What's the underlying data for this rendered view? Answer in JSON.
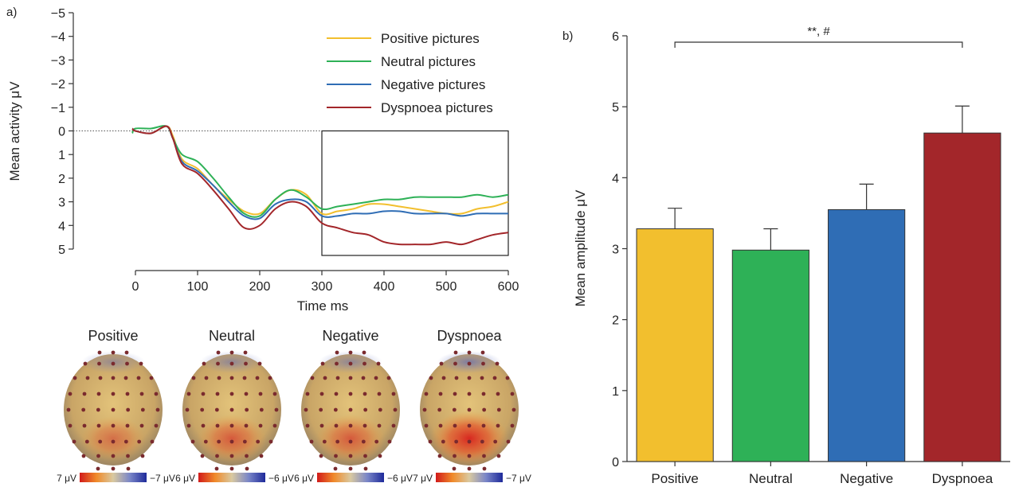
{
  "panel_a": {
    "label": "a)",
    "chart_data": {
      "type": "line",
      "xlabel": "Time ms",
      "ylabel": "Mean activity μV",
      "xlim": [
        0,
        600
      ],
      "ylim": [
        -5,
        5
      ],
      "y_inverted": true,
      "x_ticks": [
        "0",
        "100",
        "200",
        "300",
        "400",
        "500",
        "600"
      ],
      "y_ticks": [
        "−5",
        "−4",
        "−3",
        "−2",
        "−1",
        "0",
        "1",
        "2",
        "3",
        "4",
        "5"
      ],
      "legend_position": "top-right",
      "highlight_window": [
        300,
        600
      ],
      "x": [
        -5,
        0,
        25,
        50,
        60,
        75,
        100,
        125,
        150,
        175,
        200,
        225,
        250,
        275,
        300,
        325,
        350,
        375,
        400,
        425,
        450,
        475,
        500,
        525,
        550,
        575,
        600
      ],
      "series": [
        {
          "name": "Positive pictures",
          "color": "#f2bf2e",
          "values": [
            -0.1,
            0,
            0.1,
            -0.2,
            0.2,
            1.2,
            1.6,
            2.3,
            2.9,
            3.4,
            3.5,
            2.9,
            2.5,
            2.7,
            3.5,
            3.4,
            3.3,
            3.1,
            3.1,
            3.2,
            3.3,
            3.4,
            3.5,
            3.5,
            3.3,
            3.2,
            3.0
          ]
        },
        {
          "name": "Neutral pictures",
          "color": "#2eb157",
          "values": [
            0.1,
            -0.1,
            -0.1,
            -0.2,
            0.3,
            1.0,
            1.3,
            2.0,
            2.8,
            3.5,
            3.6,
            2.9,
            2.5,
            2.8,
            3.3,
            3.2,
            3.1,
            3.0,
            2.9,
            2.9,
            2.8,
            2.8,
            2.8,
            2.8,
            2.7,
            2.8,
            2.7
          ]
        },
        {
          "name": "Negative pictures",
          "color": "#2f6db5",
          "values": [
            -0.1,
            0,
            0.1,
            -0.2,
            0.3,
            1.3,
            1.7,
            2.3,
            3.0,
            3.6,
            3.7,
            3.1,
            2.9,
            3.0,
            3.6,
            3.6,
            3.5,
            3.5,
            3.4,
            3.4,
            3.5,
            3.5,
            3.5,
            3.6,
            3.5,
            3.5,
            3.5
          ]
        },
        {
          "name": "Dyspnoea pictures",
          "color": "#a3262a",
          "values": [
            -0.1,
            0,
            0.1,
            -0.2,
            0.3,
            1.4,
            1.8,
            2.5,
            3.3,
            4.1,
            4.0,
            3.3,
            3.0,
            3.2,
            3.9,
            4.1,
            4.3,
            4.4,
            4.7,
            4.8,
            4.8,
            4.8,
            4.7,
            4.8,
            4.6,
            4.4,
            4.3
          ]
        }
      ]
    }
  },
  "topomaps": [
    {
      "title": "Positive",
      "scale_left": "7 μV",
      "scale_right": "−7 μV",
      "intensity": 0.45
    },
    {
      "title": "Neutral",
      "scale_left": "6 μV",
      "scale_right": "−6 μV",
      "intensity": 0.6
    },
    {
      "title": "Negative",
      "scale_left": "6 μV",
      "scale_right": "−6 μV",
      "intensity": 0.6
    },
    {
      "title": "Dyspnoea",
      "scale_left": "7 μV",
      "scale_right": "−7 μV",
      "intensity": 0.95
    }
  ],
  "panel_b": {
    "label": "b)",
    "chart_data": {
      "type": "bar",
      "categories": [
        "Positive",
        "Neutral",
        "Negative",
        "Dyspnoea"
      ],
      "values": [
        3.28,
        2.98,
        3.55,
        4.63
      ],
      "errors": [
        0.29,
        0.3,
        0.36,
        0.38
      ],
      "colors": [
        "#f2bf2e",
        "#2eb157",
        "#2f6db5",
        "#a3262a"
      ],
      "ylabel": "Mean amplitude μV",
      "ylim": [
        0,
        6
      ],
      "y_ticks": [
        "0",
        "1",
        "2",
        "3",
        "4",
        "5",
        "6"
      ],
      "significance": {
        "from": "Positive",
        "to": "Dyspnoea",
        "label": "**, #"
      }
    }
  }
}
